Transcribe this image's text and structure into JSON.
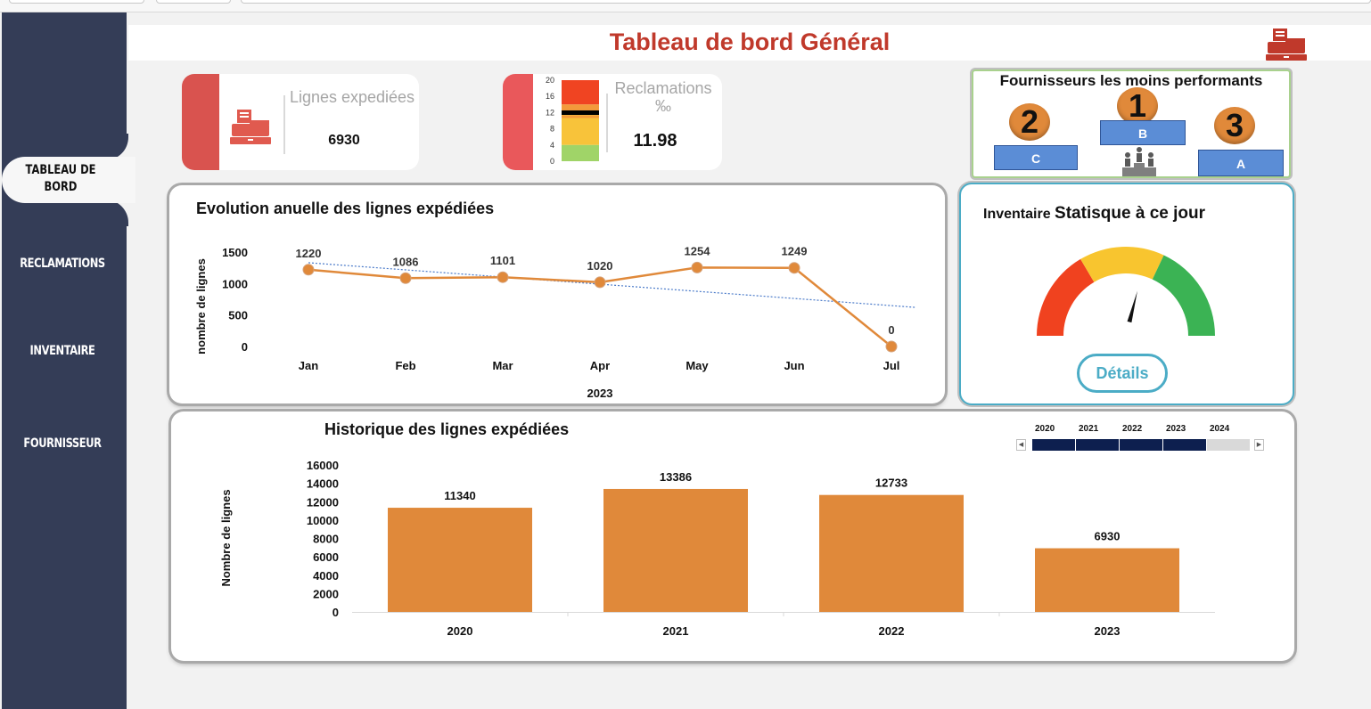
{
  "header": {
    "title": "Tableau de bord Général"
  },
  "sidebar": {
    "items": [
      {
        "label": "TABLEAU DE BORD",
        "line1": "TABLEAU DE",
        "line2": "BORD",
        "active": true
      },
      {
        "label": "RECLAMATIONS"
      },
      {
        "label": "INVENTAIRE"
      },
      {
        "label": "FOURNISSEUR"
      }
    ]
  },
  "kpi_lines": {
    "label": "Lignes expediées",
    "value": "6930"
  },
  "kpi_claims": {
    "label_line1": "Reclamations",
    "label_line2": "‰",
    "value": "11.98",
    "scale_ticks": [
      "20",
      "16",
      "12",
      "8",
      "4",
      "0"
    ],
    "indicator_value": 11.98
  },
  "suppliers": {
    "title": "Fournisseurs les moins performants",
    "rank1": {
      "rank": "1",
      "name": "B"
    },
    "rank2": {
      "rank": "2",
      "name": "C"
    },
    "rank3": {
      "rank": "3",
      "name": "A"
    }
  },
  "inventory": {
    "title_part1": "Inventaire",
    "title_part2": "Statisque à ce jour",
    "details_label": "Détails",
    "gauge_fraction": 0.58
  },
  "chart_data": [
    {
      "type": "line",
      "title": "Evolution anuelle des lignes expédiées",
      "xlabel": "2023",
      "ylabel": "nombre de lignes",
      "categories": [
        "Jan",
        "Feb",
        "Mar",
        "Apr",
        "May",
        "Jun",
        "Jul"
      ],
      "values": [
        1220,
        1086,
        1101,
        1020,
        1254,
        1249,
        0
      ],
      "yticks": [
        "1500",
        "1000",
        "500",
        "0"
      ],
      "ylim": [
        0,
        1500
      ],
      "trendline": true,
      "color": "#e0893a"
    },
    {
      "type": "bar",
      "title": "Historique des lignes expédiées",
      "ylabel": "Nombre de lignes",
      "categories": [
        "2020",
        "2021",
        "2022",
        "2023"
      ],
      "values": [
        11340,
        13386,
        12733,
        6930
      ],
      "yticks": [
        "16000",
        "14000",
        "12000",
        "10000",
        "8000",
        "6000",
        "4000",
        "2000",
        "0"
      ],
      "ylim": [
        0,
        16000
      ],
      "color": "#e0893a"
    }
  ],
  "slicer": {
    "years": [
      "2020",
      "2021",
      "2022",
      "2023",
      "2024"
    ],
    "selected": [
      "2020",
      "2021",
      "2022",
      "2023"
    ],
    "selected_color": "#0d1f4f"
  }
}
